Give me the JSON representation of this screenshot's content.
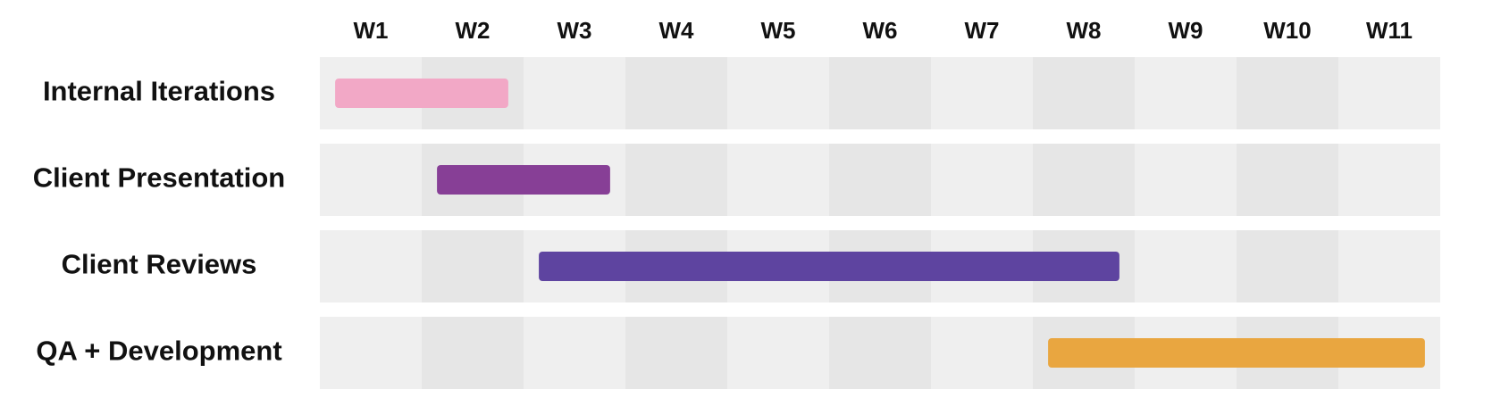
{
  "chart_data": {
    "type": "gantt",
    "title": "",
    "xlabel": "",
    "ylabel": "",
    "weeks": [
      "W1",
      "W2",
      "W3",
      "W4",
      "W5",
      "W6",
      "W7",
      "W8",
      "W9",
      "W10",
      "W11"
    ],
    "xlim": [
      0,
      11
    ],
    "tasks": [
      {
        "name": "Internal Iterations",
        "start": 0.15,
        "end": 1.85,
        "color": "#f2a8c6"
      },
      {
        "name": "Client Presentation",
        "start": 1.15,
        "end": 2.85,
        "color": "#873f96"
      },
      {
        "name": "Client Reviews",
        "start": 2.15,
        "end": 7.85,
        "color": "#5e44a0"
      },
      {
        "name": "QA + Development",
        "start": 7.15,
        "end": 10.85,
        "color": "#e9a640"
      }
    ],
    "column_colors": {
      "odd": "#efefef",
      "even": "#e6e6e6"
    },
    "grid": false,
    "legend": "none"
  }
}
